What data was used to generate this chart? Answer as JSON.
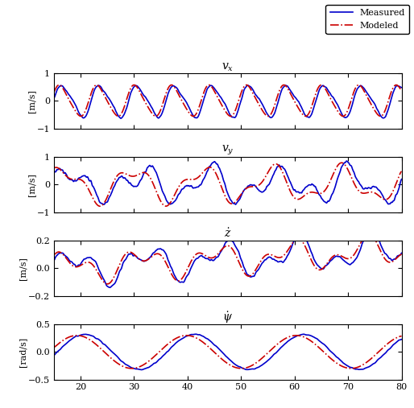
{
  "title_vx": "$v_x$",
  "title_vy": "$v_y$",
  "title_vz": "$\\dot{z}$",
  "title_vpsi": "$\\dot{\\psi}$",
  "ylabel_ms": "[m/s]",
  "ylabel_rads": "[rad/s]",
  "xlim": [
    15,
    80
  ],
  "xticks": [
    20,
    30,
    40,
    50,
    60,
    70,
    80
  ],
  "ylim_vx": [
    -1,
    1
  ],
  "yticks_vx": [
    -1,
    0,
    1
  ],
  "ylim_vy": [
    -1,
    1
  ],
  "yticks_vy": [
    -1,
    0,
    1
  ],
  "ylim_vz": [
    -0.2,
    0.2
  ],
  "yticks_vz": [
    -0.2,
    0,
    0.2
  ],
  "ylim_vpsi": [
    -0.5,
    0.5
  ],
  "yticks_vpsi": [
    -0.5,
    0,
    0.5
  ],
  "color_measured": "#0000CC",
  "color_modeled": "#CC0000",
  "lw_measured": 1.2,
  "lw_modeled": 1.2,
  "legend_labels": [
    "Measured",
    "Modeled"
  ],
  "background_color": "#ffffff",
  "figsize": [
    5.14,
    5.07
  ],
  "dpi": 100
}
